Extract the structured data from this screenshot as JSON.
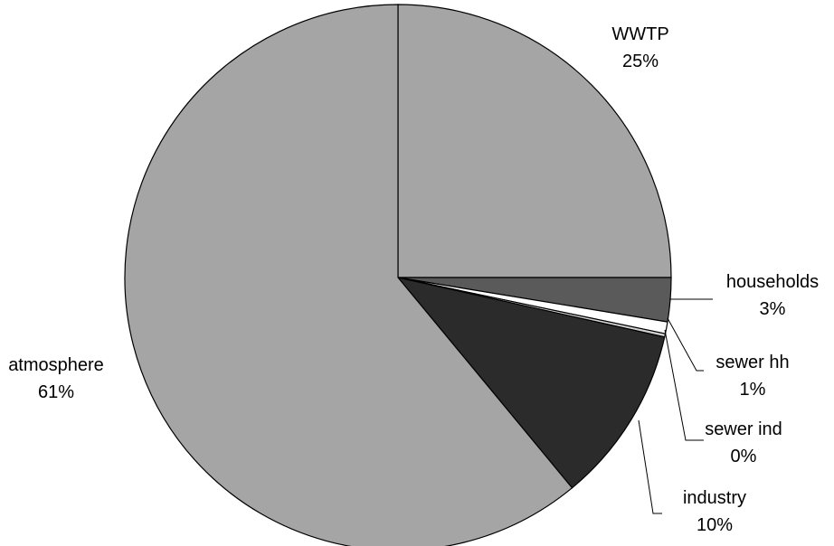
{
  "chart_data": {
    "type": "pie",
    "title": "",
    "start": "12 o'clock",
    "direction": "clockwise",
    "slices": [
      {
        "label": "WWTP",
        "value": 25,
        "value_label": "25%",
        "color": "#a5a5a5"
      },
      {
        "label": "households",
        "value": 2.6,
        "value_label": "3%",
        "color": "#5a5a5a"
      },
      {
        "label": "sewer hh",
        "value": 0.7,
        "value_label": "1%",
        "color": "#ffffff"
      },
      {
        "label": "sewer ind",
        "value": 0.2,
        "value_label": "0%",
        "color": "#d0d0d0"
      },
      {
        "label": "industry",
        "value": 10.5,
        "value_label": "10%",
        "color": "#2b2b2b"
      },
      {
        "label": "atmosphere",
        "value": 61,
        "value_label": "61%",
        "color": "#a5a5a5"
      }
    ]
  }
}
